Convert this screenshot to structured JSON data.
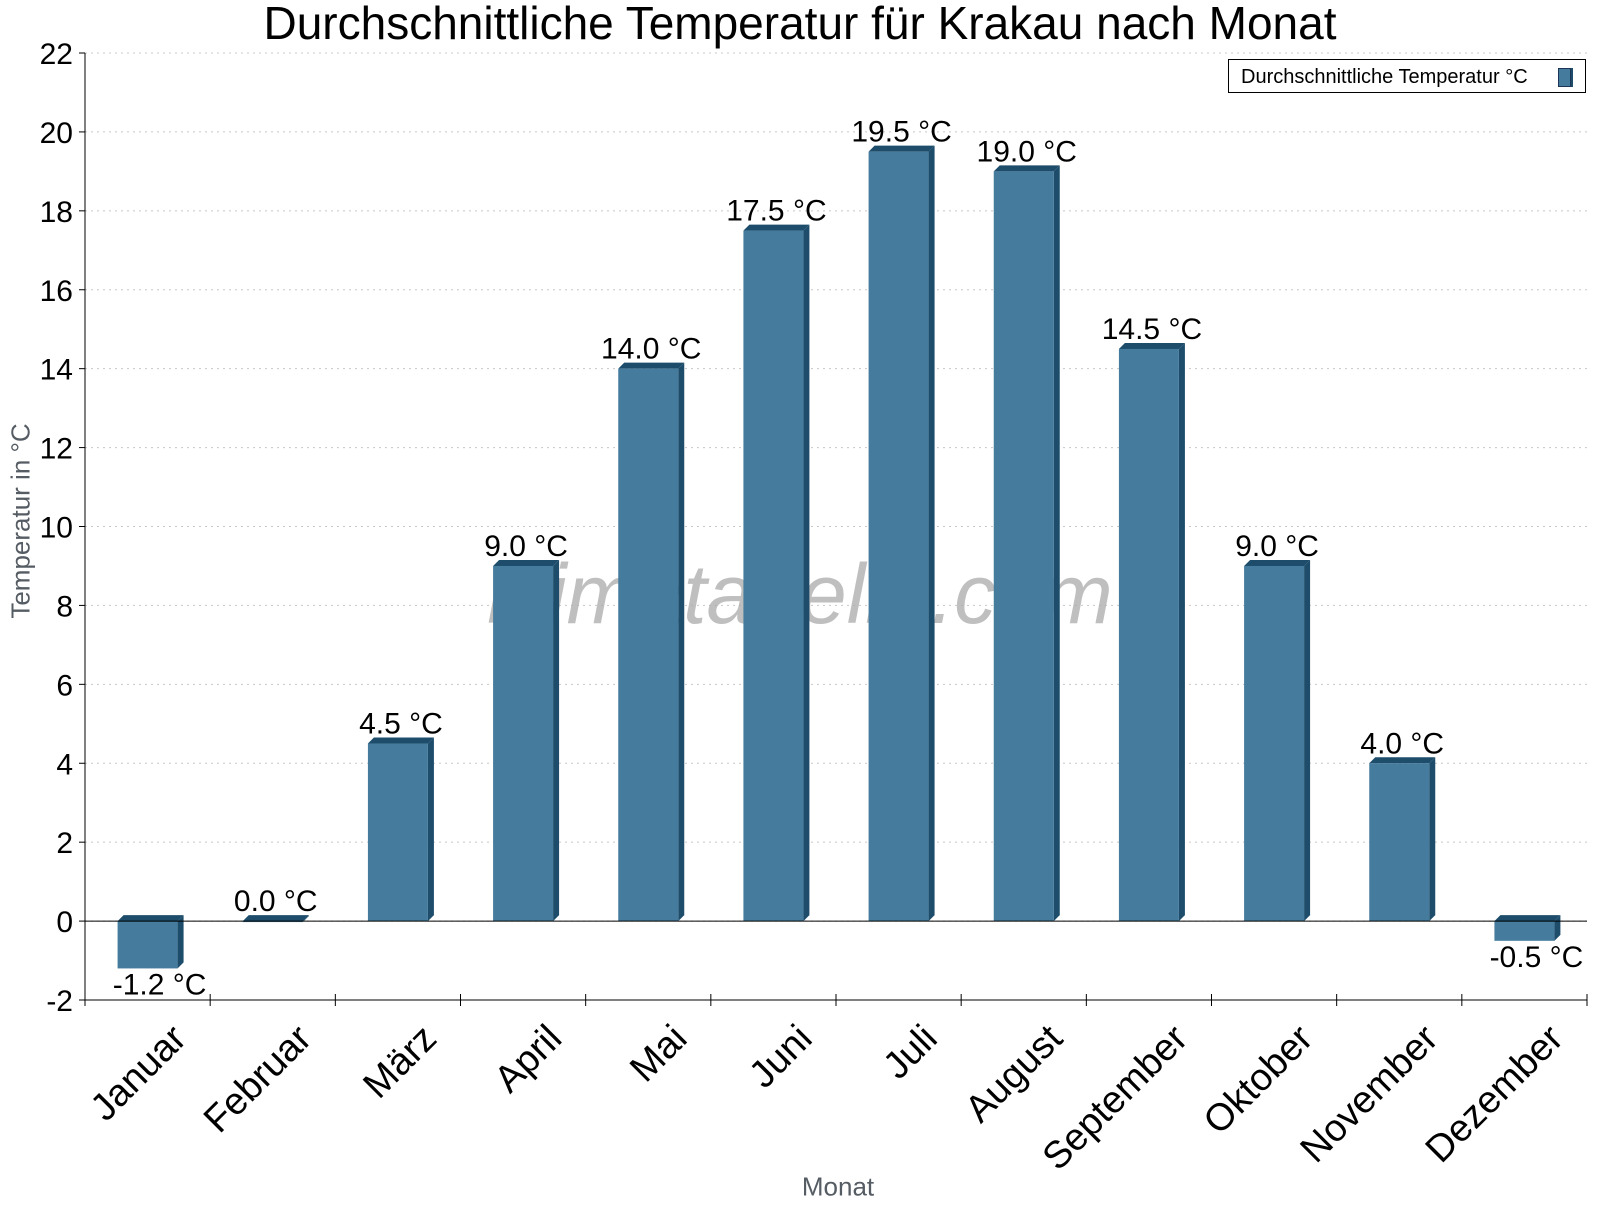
{
  "chart_data": {
    "type": "bar",
    "title": "Durchschnittliche Temperatur für Krakau nach Monat",
    "xlabel": "Monat",
    "ylabel": "Temperatur in °C",
    "categories": [
      "Januar",
      "Februar",
      "März",
      "April",
      "Mai",
      "Juni",
      "Juli",
      "August",
      "September",
      "Oktober",
      "November",
      "Dezember"
    ],
    "series": [
      {
        "name": "Durchschnittliche Temperatur °C",
        "values": [
          -1.2,
          0.0,
          4.5,
          9.0,
          14.0,
          17.5,
          19.5,
          19.0,
          14.5,
          9.0,
          4.0,
          -0.5
        ],
        "value_labels": [
          "-1.2 °C",
          "0.0 °C",
          "4.5 °C",
          "9.0 °C",
          "14.0 °C",
          "17.5 °C",
          "19.5 °C",
          "19.0 °C",
          "14.5 °C",
          "9.0 °C",
          "4.0 °C",
          "-0.5 °C"
        ]
      }
    ],
    "ylim": [
      -2,
      22
    ],
    "yticks": [
      -2,
      0,
      2,
      4,
      6,
      8,
      10,
      12,
      14,
      16,
      18,
      20,
      22
    ],
    "grid": true,
    "legend_position": "top-right",
    "colors": {
      "bar": "#457b9d",
      "bar_side": "#1d4d6b",
      "grid": "#c8c8c8",
      "watermark": "#aaaaaa"
    }
  },
  "watermark": "klimatabelle.com"
}
